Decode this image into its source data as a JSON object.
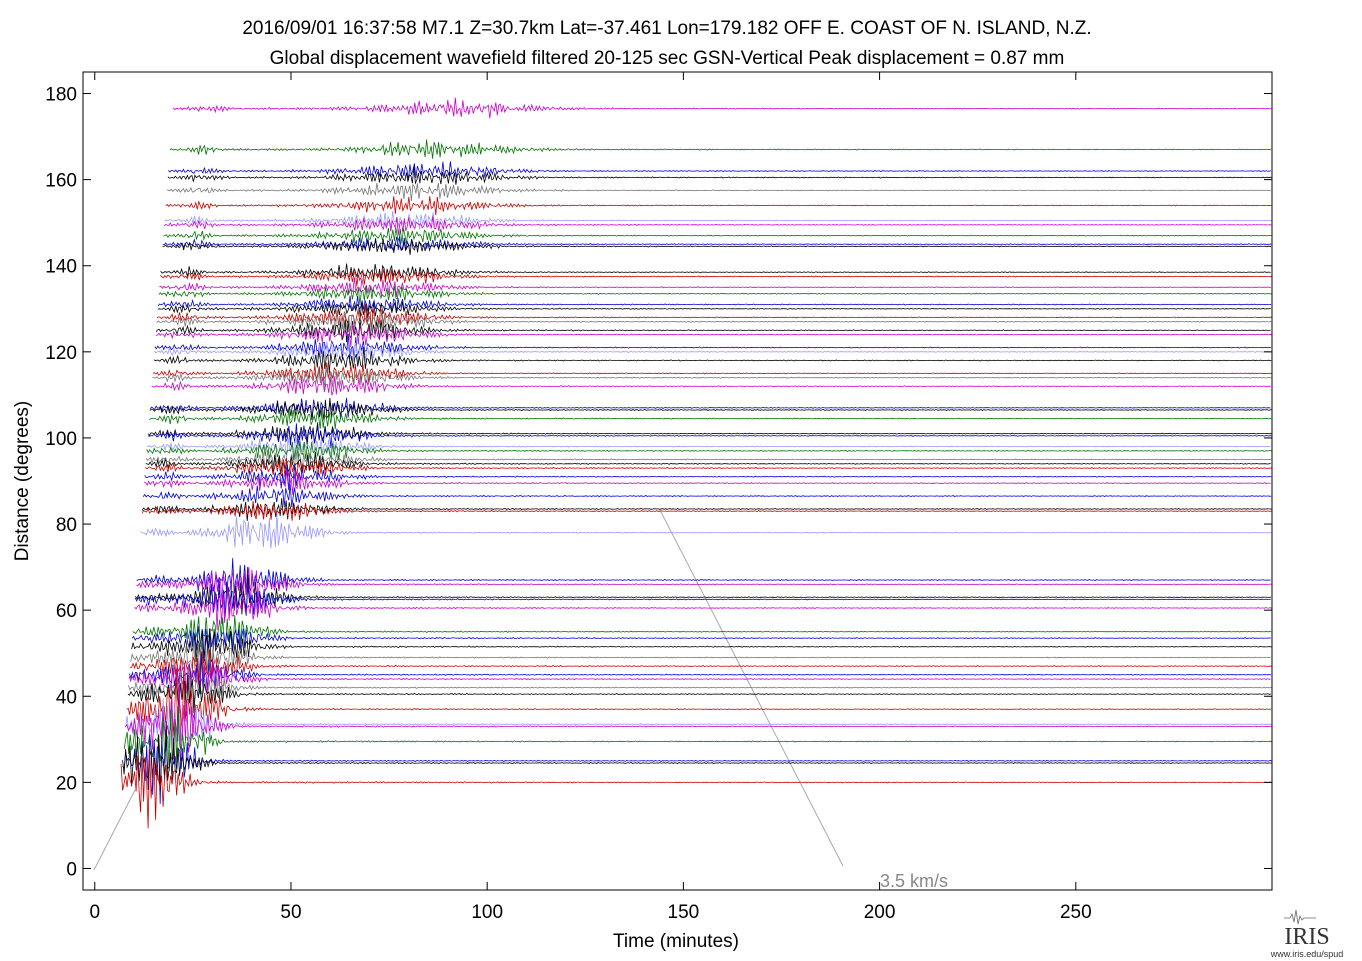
{
  "chart_data": {
    "type": "record-section",
    "title": "2016/09/01  16:37:58  M7.1  Z=30.7km  Lat=-37.461 Lon=179.182  OFF E. COAST OF N. ISLAND, N.Z.",
    "subtitle": "Global displacement wavefield     filtered 20-125 sec     GSN-Vertical     Peak displacement = 0.87 mm",
    "xlabel": "Time (minutes)",
    "ylabel": "Distance (degrees)",
    "annotation": "3.5 km/s",
    "xlim": [
      -3,
      300
    ],
    "ylim": [
      -5,
      185
    ],
    "xticks": [
      0,
      50,
      100,
      150,
      200,
      250
    ],
    "yticks": [
      0,
      20,
      40,
      60,
      80,
      100,
      120,
      140,
      160,
      180
    ],
    "traces": [
      {
        "distance": 176.5,
        "color": "#cc00cc"
      },
      {
        "distance": 167,
        "color": "#007700"
      },
      {
        "distance": 162,
        "color": "#0000dd"
      },
      {
        "distance": 160.5,
        "color": "#000000"
      },
      {
        "distance": 157.5,
        "color": "#777777"
      },
      {
        "distance": 154,
        "color": "#cc0000"
      },
      {
        "distance": 150.5,
        "color": "#9999ff"
      },
      {
        "distance": 149.5,
        "color": "#cc00cc"
      },
      {
        "distance": 147,
        "color": "#007700"
      },
      {
        "distance": 145,
        "color": "#0000dd"
      },
      {
        "distance": 144.5,
        "color": "#000000"
      },
      {
        "distance": 138.5,
        "color": "#000000"
      },
      {
        "distance": 137.5,
        "color": "#cc0000"
      },
      {
        "distance": 135,
        "color": "#cc00cc"
      },
      {
        "distance": 133.5,
        "color": "#007700"
      },
      {
        "distance": 131,
        "color": "#0000dd"
      },
      {
        "distance": 130,
        "color": "#000000"
      },
      {
        "distance": 128,
        "color": "#cc0000"
      },
      {
        "distance": 127,
        "color": "#777777"
      },
      {
        "distance": 125,
        "color": "#000000"
      },
      {
        "distance": 124,
        "color": "#cc00cc"
      },
      {
        "distance": 121,
        "color": "#0000dd"
      },
      {
        "distance": 120,
        "color": "#9999ff"
      },
      {
        "distance": 118,
        "color": "#000000"
      },
      {
        "distance": 115,
        "color": "#cc0000"
      },
      {
        "distance": 114,
        "color": "#777777"
      },
      {
        "distance": 112,
        "color": "#cc00cc"
      },
      {
        "distance": 107,
        "color": "#0000dd"
      },
      {
        "distance": 106.5,
        "color": "#000000"
      },
      {
        "distance": 104.5,
        "color": "#007700"
      },
      {
        "distance": 101,
        "color": "#000000"
      },
      {
        "distance": 100.5,
        "color": "#0000dd"
      },
      {
        "distance": 98,
        "color": "#9999ff"
      },
      {
        "distance": 97,
        "color": "#007700"
      },
      {
        "distance": 95,
        "color": "#777777"
      },
      {
        "distance": 94,
        "color": "#000000"
      },
      {
        "distance": 93,
        "color": "#cc0000"
      },
      {
        "distance": 91,
        "color": "#0000dd"
      },
      {
        "distance": 89.5,
        "color": "#cc00cc"
      },
      {
        "distance": 86.5,
        "color": "#0000dd"
      },
      {
        "distance": 83.5,
        "color": "#000000"
      },
      {
        "distance": 83,
        "color": "#cc0000"
      },
      {
        "distance": 78,
        "color": "#9999ff"
      },
      {
        "distance": 67,
        "color": "#0000dd"
      },
      {
        "distance": 66,
        "color": "#cc00cc"
      },
      {
        "distance": 63,
        "color": "#000000"
      },
      {
        "distance": 62.5,
        "color": "#0000dd"
      },
      {
        "distance": 60.5,
        "color": "#cc00cc"
      },
      {
        "distance": 55,
        "color": "#007700"
      },
      {
        "distance": 53.5,
        "color": "#0000dd"
      },
      {
        "distance": 51.5,
        "color": "#000000"
      },
      {
        "distance": 49,
        "color": "#777777"
      },
      {
        "distance": 47,
        "color": "#cc0000"
      },
      {
        "distance": 45,
        "color": "#0000dd"
      },
      {
        "distance": 44,
        "color": "#cc00cc"
      },
      {
        "distance": 42,
        "color": "#777777"
      },
      {
        "distance": 40.5,
        "color": "#000000"
      },
      {
        "distance": 37,
        "color": "#cc0000"
      },
      {
        "distance": 33.5,
        "color": "#9999ff"
      },
      {
        "distance": 33,
        "color": "#cc00cc"
      },
      {
        "distance": 29.5,
        "color": "#007700"
      },
      {
        "distance": 25,
        "color": "#0000dd"
      },
      {
        "distance": 24.5,
        "color": "#000000"
      },
      {
        "distance": 20,
        "color": "#cc0000"
      }
    ]
  },
  "logo": {
    "text": "IRIS",
    "url": "www.iris.edu/spud"
  }
}
